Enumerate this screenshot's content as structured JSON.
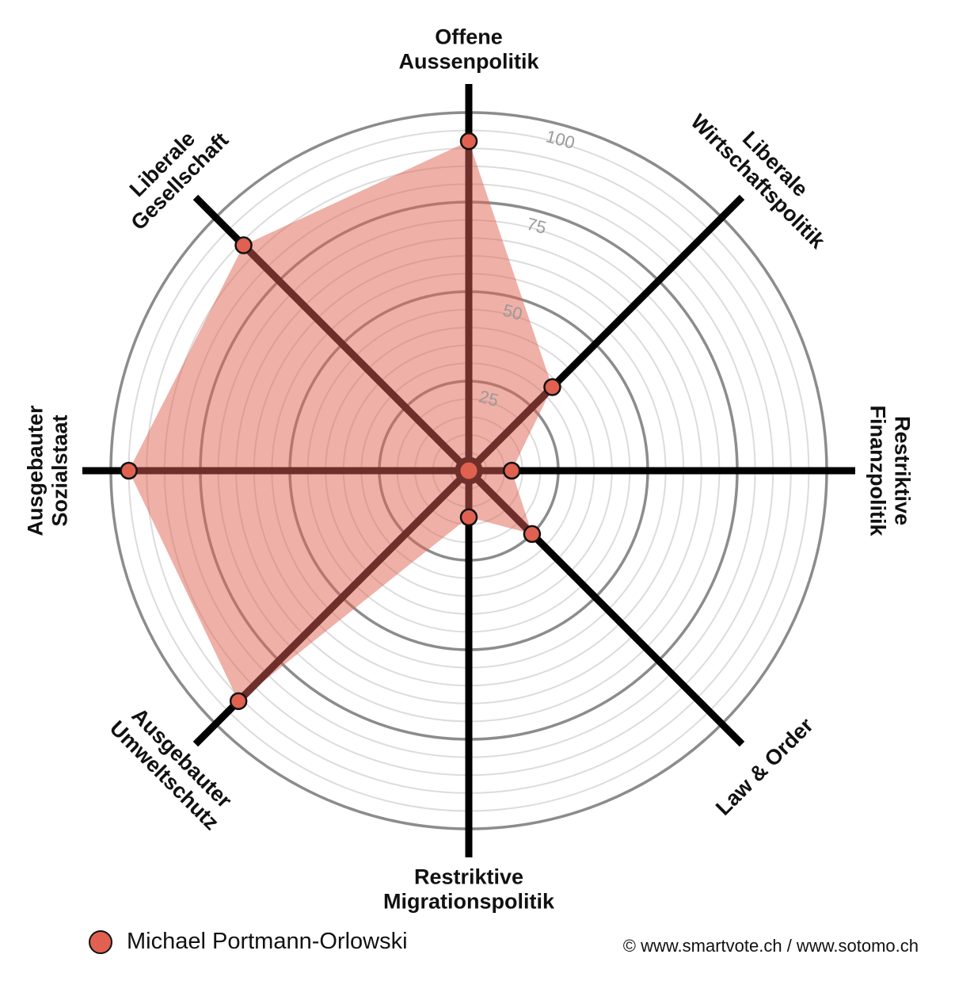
{
  "chart_data": {
    "type": "radar",
    "max": 100,
    "tick_values": [
      25,
      50,
      75,
      100
    ],
    "grid_step": 5,
    "axes": [
      {
        "lines": [
          "Offene",
          "Aussenpolitik"
        ],
        "value": 92
      },
      {
        "lines": [
          "Liberale",
          "Wirtschaftspolitik"
        ],
        "value": 33
      },
      {
        "lines": [
          "Restriktive",
          "Finanzpolitik"
        ],
        "value": 12
      },
      {
        "lines": [
          "Law & Order"
        ],
        "value": 25
      },
      {
        "lines": [
          "Restriktive",
          "Migrationspolitik"
        ],
        "value": 13
      },
      {
        "lines": [
          "Ausgebauter",
          "Umweltschutz"
        ],
        "value": 91
      },
      {
        "lines": [
          "Ausgebauter",
          "Sozialstaat"
        ],
        "value": 95
      },
      {
        "lines": [
          "Liberale",
          "Gesellschaft"
        ],
        "value": 89
      }
    ],
    "series": [
      {
        "name": "Michael Portmann-Orlowski",
        "color": "#e0614f"
      }
    ]
  },
  "legend": {
    "name": "Michael Portmann-Orlowski",
    "color": "#e0614f"
  },
  "credit": "© www.smartvote.ch / www.sotomo.ch"
}
